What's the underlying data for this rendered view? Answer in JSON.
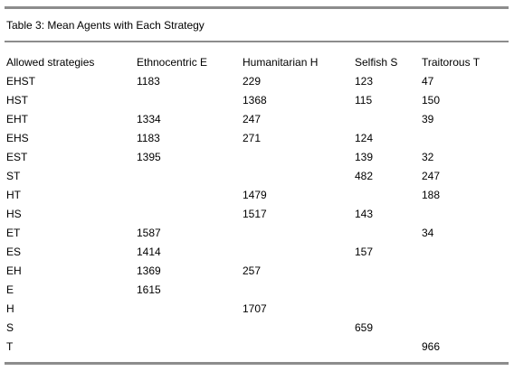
{
  "caption": "Table 3: Mean Agents with Each Strategy",
  "table": {
    "headers": [
      "Allowed strategies",
      "Ethnocentric E",
      "Humanitarian H",
      "Selfish S",
      "Traitorous T"
    ],
    "rows": [
      [
        "EHST",
        "1183",
        "229",
        "123",
        "47"
      ],
      [
        "HST",
        "",
        "1368",
        "115",
        "150"
      ],
      [
        "EHT",
        "1334",
        "247",
        "",
        "39"
      ],
      [
        "EHS",
        "1183",
        "271",
        "124",
        ""
      ],
      [
        "EST",
        "1395",
        "",
        "139",
        "32"
      ],
      [
        "ST",
        "",
        "",
        "482",
        "247"
      ],
      [
        "HT",
        "",
        "1479",
        "",
        "188"
      ],
      [
        "HS",
        "",
        "1517",
        "143",
        ""
      ],
      [
        "ET",
        "1587",
        "",
        "",
        "34"
      ],
      [
        "ES",
        "1414",
        "",
        "157",
        ""
      ],
      [
        "EH",
        "1369",
        "257",
        "",
        ""
      ],
      [
        "E",
        "1615",
        "",
        "",
        ""
      ],
      [
        "H",
        "",
        "1707",
        "",
        ""
      ],
      [
        "S",
        "",
        "",
        "659",
        ""
      ],
      [
        "T",
        "",
        "",
        "",
        "966"
      ]
    ]
  }
}
